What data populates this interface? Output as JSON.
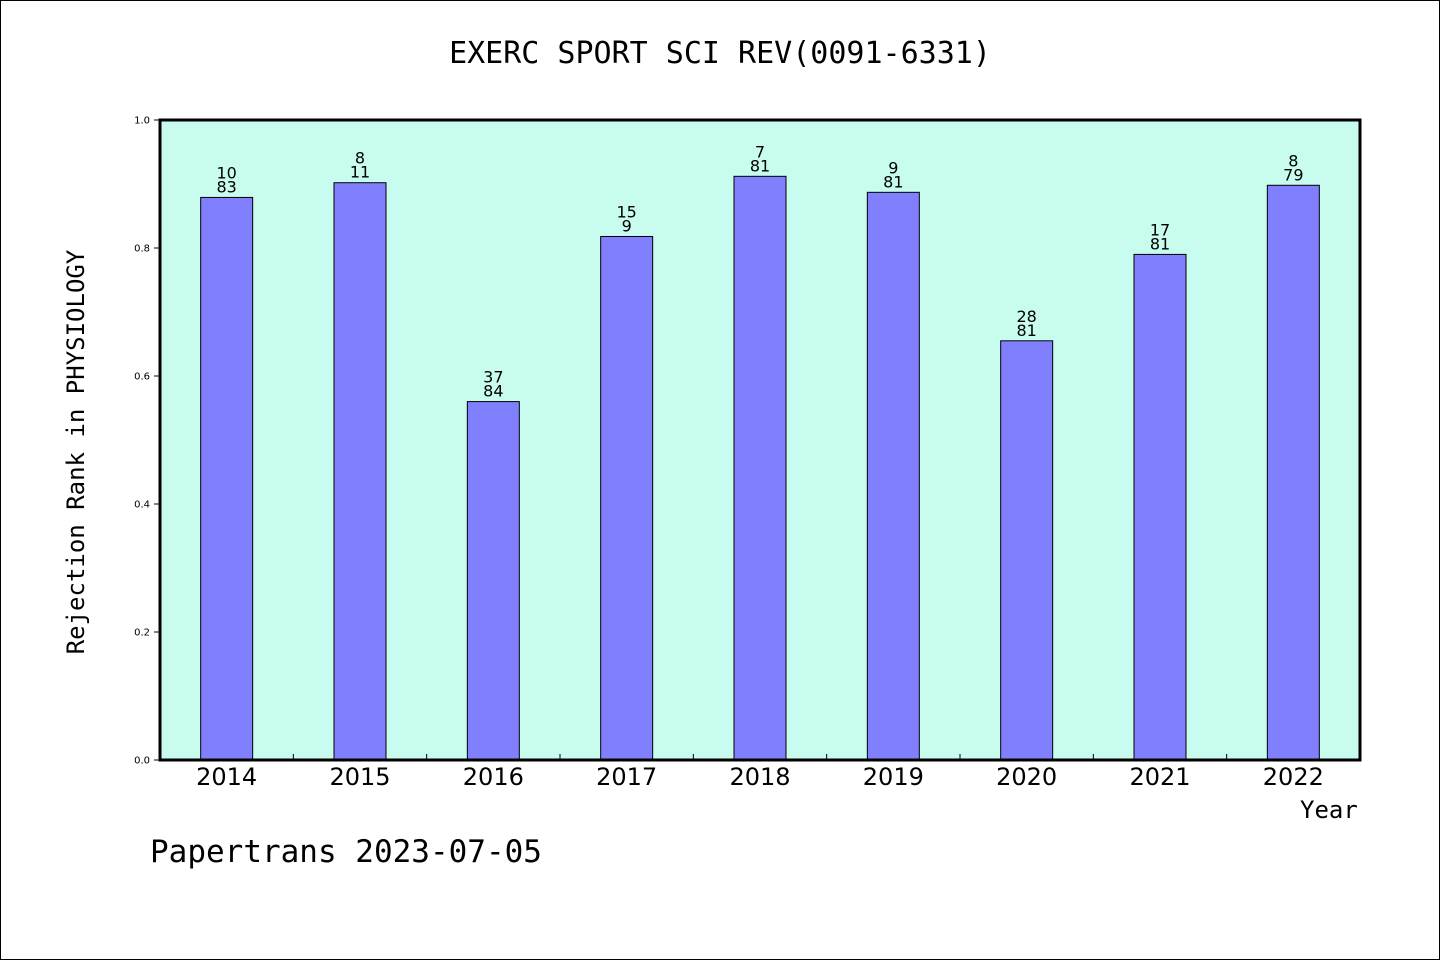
{
  "chart_data": {
    "type": "bar",
    "title": "EXERC SPORT SCI REV(0091-6331)",
    "xlabel": "Year",
    "ylabel": "Rejection Rank in PHYSIOLOGY",
    "categories": [
      "2014",
      "2015",
      "2016",
      "2017",
      "2018",
      "2019",
      "2020",
      "2021",
      "2022"
    ],
    "values": [
      0.879,
      0.902,
      0.56,
      0.818,
      0.912,
      0.887,
      0.655,
      0.79,
      0.898
    ],
    "bar_labels": [
      [
        "10",
        "83"
      ],
      [
        "8",
        "11"
      ],
      [
        "37",
        "84"
      ],
      [
        "15",
        "9"
      ],
      [
        "7",
        "81"
      ],
      [
        "9",
        "81"
      ],
      [
        "28",
        "81"
      ],
      [
        "17",
        "81"
      ],
      [
        "8",
        "79"
      ]
    ],
    "ylim": [
      0,
      1.0
    ],
    "yticks": [
      "0.0",
      "0.2",
      "0.4",
      "0.6",
      "0.8",
      "1.0"
    ],
    "grid": false,
    "colors": {
      "plot_background": "#c8fcee",
      "bar_fill": "#8080ff",
      "bar_stroke": "#000000"
    }
  },
  "footer": "Papertrans 2023-07-05"
}
